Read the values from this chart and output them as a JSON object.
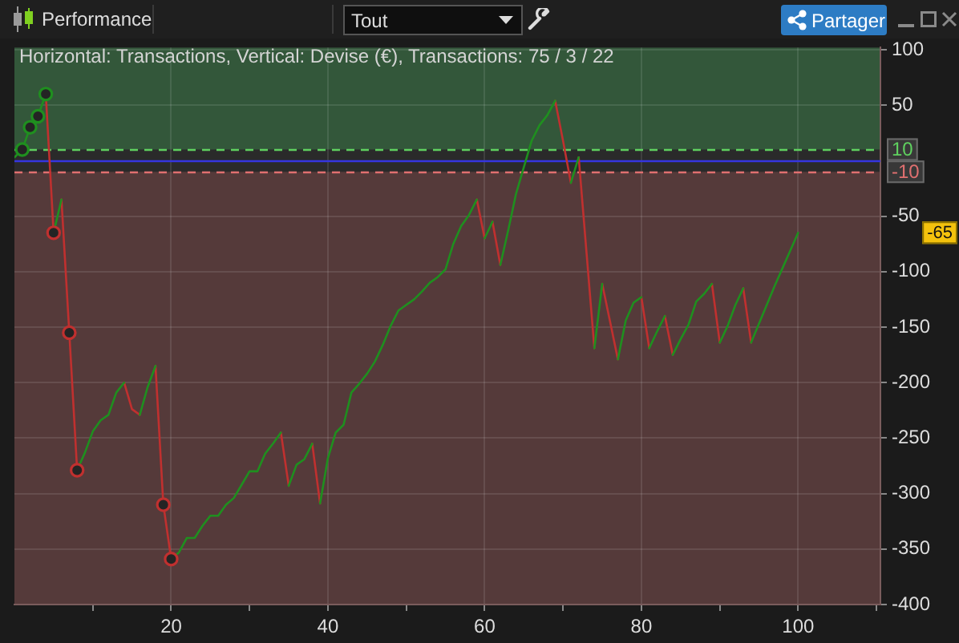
{
  "chart_data": {
    "type": "line",
    "title": "Performance",
    "subtitle": "Horizontal: Transactions, Vertical: Devise (€), Transactions: 75 / 3 / 22",
    "series": [
      {
        "color": "#1f8f1f",
        "marker": "none",
        "x": [
          0,
          1,
          2,
          3,
          4,
          4.5,
          5,
          6,
          6.5,
          8,
          9,
          10,
          11,
          12,
          13,
          14,
          14.5,
          16,
          17,
          18,
          18.5,
          20,
          21,
          22,
          23,
          24,
          25,
          26,
          27,
          28,
          29,
          30,
          31,
          32,
          33,
          34,
          34.5,
          35,
          36,
          37,
          38,
          38.5,
          39,
          40,
          41,
          42,
          43,
          44,
          45,
          46,
          47,
          48,
          49,
          50,
          51,
          52,
          53,
          54,
          55,
          56,
          57,
          58,
          59,
          59.5,
          60,
          61,
          61.5,
          62,
          63,
          64,
          65,
          66,
          67,
          68,
          69,
          69.5,
          71,
          72,
          72.5,
          74,
          75,
          75.5,
          77,
          78,
          79,
          80,
          80.5,
          81,
          82,
          83,
          83.5,
          84,
          85,
          86,
          87,
          88,
          89,
          89.5,
          90,
          91,
          92,
          93,
          93.5,
          94,
          95,
          96,
          97,
          98,
          99,
          100
        ],
        "values": [
          3,
          10,
          30,
          40,
          60,
          null,
          -65,
          -35,
          null,
          -279,
          -263,
          -244,
          -234,
          -229,
          -209,
          -200,
          null,
          -229,
          -204,
          -185,
          null,
          -359,
          -353,
          -340,
          -340,
          -329,
          -320,
          -320,
          -310,
          -304,
          -292,
          -280,
          -280,
          -264,
          -255,
          -245,
          null,
          -293,
          -274,
          -269,
          -255,
          null,
          -309,
          -268,
          -245,
          -238,
          -209,
          -201,
          -192,
          -181,
          -166,
          -149,
          -135,
          -130,
          -125,
          -118,
          -110,
          -105,
          -98,
          -75,
          -59,
          -49,
          -35,
          null,
          -70,
          -55,
          null,
          -94,
          -63,
          -30,
          -6,
          18,
          32,
          41,
          54,
          null,
          -20,
          3,
          null,
          -169,
          -111,
          null,
          -179,
          -144,
          -128,
          -123,
          null,
          -169,
          -154,
          -140,
          null,
          -175,
          -161,
          -148,
          -127,
          -120,
          -111,
          null,
          -164,
          -149,
          -130,
          -115,
          null,
          -164,
          -147,
          -130,
          -113,
          -97,
          -81,
          -65
        ]
      },
      {
        "color": "#c0302f",
        "marker": "none",
        "x": [
          4,
          5,
          5.5,
          6,
          7,
          8,
          8.5,
          14,
          15,
          16,
          16.5,
          18,
          19,
          20,
          20.5,
          34,
          35,
          35.5,
          38,
          39,
          39.5,
          59,
          60,
          60.5,
          61,
          62,
          62.5,
          69,
          70,
          71,
          71.5,
          72,
          73,
          74,
          74.5,
          75,
          76,
          77,
          77.5,
          80,
          81,
          81.5,
          83,
          84,
          84.5,
          89,
          90,
          90.5,
          93,
          94
        ],
        "values": [
          60,
          -65,
          null,
          -35,
          -155,
          -279,
          null,
          -200,
          -224,
          -229,
          null,
          -185,
          -310,
          -359,
          null,
          -245,
          -293,
          null,
          -255,
          -309,
          null,
          -35,
          -70,
          null,
          -55,
          -94,
          null,
          54,
          18,
          -20,
          null,
          3,
          -83,
          -169,
          null,
          -111,
          -145,
          -179,
          null,
          -123,
          -169,
          null,
          -140,
          -175,
          null,
          -111,
          -164,
          null,
          -115,
          -164
        ]
      },
      {
        "type": "scatter",
        "color": "#1f8f1f",
        "marker": "circle",
        "x": [
          1,
          2,
          3,
          4
        ],
        "values": [
          10,
          30,
          40,
          60
        ]
      },
      {
        "type": "scatter",
        "color": "#c0302f",
        "marker": "circle",
        "x": [
          5,
          7,
          8,
          19,
          20
        ],
        "values": [
          -65,
          -155,
          -279,
          -310,
          -359
        ]
      }
    ],
    "xlim": [
      0,
      110.5
    ],
    "xticks": [
      {
        "value": 10,
        "label": null
      },
      20,
      {
        "value": 30,
        "label": null
      },
      40,
      {
        "value": 50,
        "label": null
      },
      60,
      {
        "value": 70,
        "label": null
      },
      80,
      {
        "value": 90,
        "label": null
      },
      100,
      {
        "value": 110,
        "label": null
      }
    ],
    "ylim": [
      -400,
      102
    ],
    "yticks": [
      100,
      50,
      -50,
      -100,
      -150,
      -200,
      -250,
      -300,
      -350,
      -400
    ],
    "grid": true,
    "ref_lines": [
      {
        "axis": "y",
        "value": 10,
        "label": "10",
        "color": "#5fd05f",
        "line_style": "dashed"
      },
      {
        "axis": "y",
        "value": -10,
        "label": "-10",
        "color": "#e07070",
        "line_style": "dashed"
      },
      {
        "axis": "y",
        "value": 0,
        "color": "#3535e0",
        "line_style": "solid"
      }
    ],
    "bands": [
      {
        "axis": "y",
        "from": 10,
        "to": 102,
        "color": "#33573a"
      },
      {
        "axis": "y",
        "from": -400,
        "to": -10,
        "color": "#553a3a"
      }
    ],
    "annotations": [
      "Tout",
      "Partager",
      "-65"
    ]
  }
}
